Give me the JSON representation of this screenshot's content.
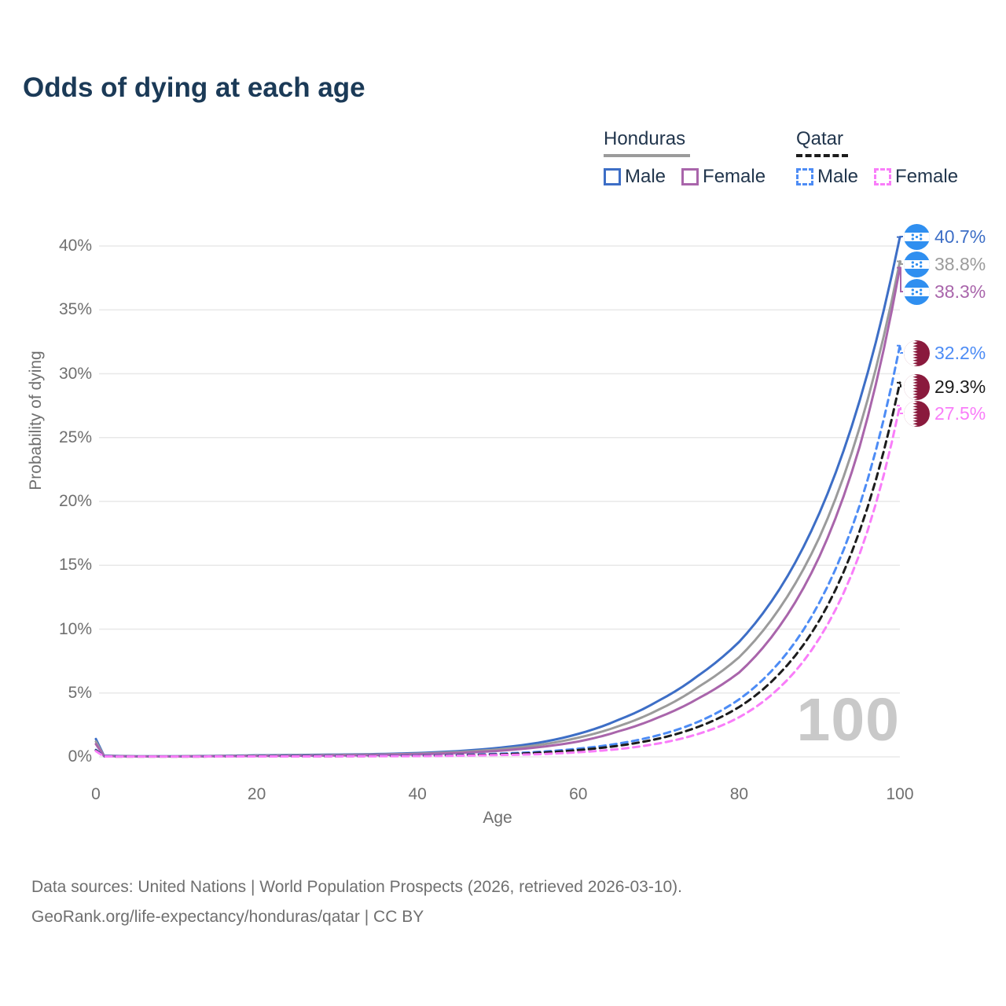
{
  "title": "Odds of dying at each age",
  "watermark": "100",
  "legend": {
    "groups": [
      {
        "label": "Honduras",
        "underline_style": "solid",
        "underline_color": "#9b9b9b",
        "items": [
          {
            "label": "Male",
            "color": "#3d6ec6",
            "dashed": false
          },
          {
            "label": "Female",
            "color": "#a965ab",
            "dashed": false
          }
        ]
      },
      {
        "label": "Qatar",
        "underline_style": "dashed",
        "underline_color": "#1c1c1c",
        "items": [
          {
            "label": "Male",
            "color": "#4d8cf5",
            "dashed": true
          },
          {
            "label": "Female",
            "color": "#f97df9",
            "dashed": true
          }
        ]
      }
    ]
  },
  "footer": {
    "line1": "Data sources: United Nations | World Population Prospects (2026, retrieved 2026-03-10).",
    "line2": "GeoRank.org/life-expectancy/honduras/qatar | CC BY"
  },
  "chart_data": {
    "type": "line",
    "title": "Odds of dying at each age",
    "xlabel": "Age",
    "ylabel": "Probability of dying",
    "xlim": [
      0,
      100
    ],
    "ylim": [
      0,
      40
    ],
    "grid": "horizontal-only",
    "legend_position": "top-right",
    "x_ticks": [
      0,
      20,
      40,
      60,
      80,
      100
    ],
    "y_ticks": {
      "values": [
        0,
        5,
        10,
        15,
        20,
        25,
        30,
        35,
        40
      ],
      "labels": [
        "0%",
        "5%",
        "10%",
        "15%",
        "20%",
        "25%",
        "30%",
        "35%",
        "40%"
      ]
    },
    "x": [
      0,
      1,
      5,
      10,
      15,
      20,
      25,
      30,
      35,
      40,
      45,
      50,
      55,
      60,
      65,
      70,
      75,
      80,
      85,
      90,
      95,
      100
    ],
    "series": [
      {
        "name": "Honduras Male",
        "country": "Honduras",
        "sex": "Male",
        "color": "#3d6ec6",
        "dashed": false,
        "end_label": "40.7%",
        "end_value": 40.7,
        "values": [
          1.4,
          0.1,
          0.05,
          0.05,
          0.08,
          0.12,
          0.15,
          0.18,
          0.22,
          0.3,
          0.45,
          0.7,
          1.1,
          1.8,
          2.9,
          4.4,
          6.4,
          9.0,
          13.1,
          19.1,
          27.9,
          40.7
        ]
      },
      {
        "name": "Honduras Both sexes",
        "country": "Honduras",
        "sex": "Both",
        "color": "#9b9b9b",
        "dashed": false,
        "end_label": "38.8%",
        "end_value": 38.8,
        "values": [
          1.2,
          0.08,
          0.04,
          0.04,
          0.07,
          0.1,
          0.12,
          0.15,
          0.18,
          0.25,
          0.38,
          0.58,
          0.92,
          1.5,
          2.4,
          3.7,
          5.5,
          7.8,
          11.6,
          17.2,
          25.8,
          38.8
        ]
      },
      {
        "name": "Honduras Female",
        "country": "Honduras",
        "sex": "Female",
        "color": "#a965ab",
        "dashed": false,
        "end_label": "38.3%",
        "end_value": 38.3,
        "values": [
          1.0,
          0.07,
          0.03,
          0.03,
          0.05,
          0.07,
          0.09,
          0.11,
          0.14,
          0.2,
          0.3,
          0.47,
          0.75,
          1.2,
          2.0,
          3.1,
          4.6,
          6.6,
          10.2,
          15.7,
          24.3,
          38.3
        ]
      },
      {
        "name": "Qatar Male",
        "country": "Qatar",
        "sex": "Male",
        "color": "#4d8cf5",
        "dashed": true,
        "end_label": "32.2%",
        "end_value": 32.2,
        "values": [
          0.55,
          0.04,
          0.03,
          0.03,
          0.04,
          0.06,
          0.06,
          0.07,
          0.08,
          0.1,
          0.15,
          0.24,
          0.39,
          0.64,
          1.04,
          1.7,
          2.77,
          4.5,
          7.4,
          12.1,
          19.7,
          32.2
        ]
      },
      {
        "name": "Qatar Both sexes",
        "country": "Qatar",
        "sex": "Both",
        "color": "#1c1c1c",
        "dashed": true,
        "end_label": "29.3%",
        "end_value": 29.3,
        "values": [
          0.5,
          0.03,
          0.02,
          0.02,
          0.03,
          0.05,
          0.05,
          0.05,
          0.06,
          0.08,
          0.12,
          0.19,
          0.32,
          0.53,
          0.87,
          1.43,
          2.37,
          3.9,
          6.5,
          10.7,
          17.7,
          29.3
        ]
      },
      {
        "name": "Qatar Female",
        "country": "Qatar",
        "sex": "Female",
        "color": "#f97df9",
        "dashed": true,
        "end_label": "27.5%",
        "end_value": 27.5,
        "values": [
          0.45,
          0.03,
          0.02,
          0.02,
          0.03,
          0.03,
          0.03,
          0.04,
          0.05,
          0.06,
          0.09,
          0.14,
          0.21,
          0.36,
          0.61,
          1.05,
          1.81,
          3.1,
          5.4,
          9.3,
          15.9,
          27.5
        ]
      }
    ],
    "flags": {
      "honduras_blue": "#2f8ff0",
      "qatar_maroon": "#8a1a3d"
    }
  }
}
